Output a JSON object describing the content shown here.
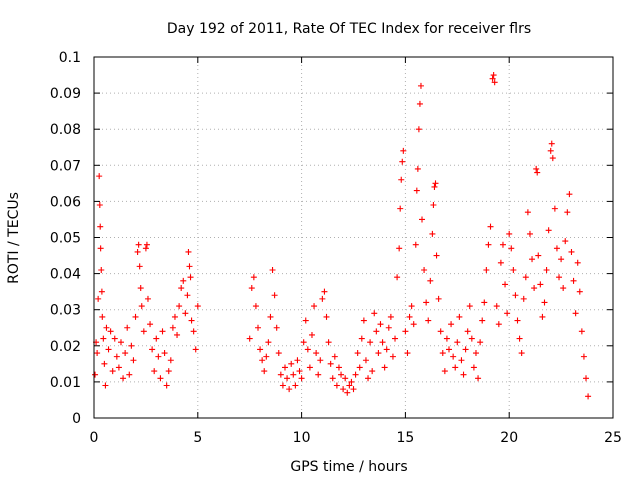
{
  "chart_data": {
    "type": "scatter",
    "title": "Day 192 of 2011, Rate Of TEC Index for receiver flrs",
    "xlabel": "GPS time / hours",
    "ylabel": "ROTI / TECUs",
    "xlim": [
      0,
      25
    ],
    "ylim": [
      0,
      0.1
    ],
    "xticks": [
      0,
      5,
      10,
      15,
      20,
      25
    ],
    "xtick_labels": [
      "0",
      "5",
      "10",
      "15",
      "20",
      "25"
    ],
    "yticks": [
      0,
      0.01,
      0.02,
      0.03,
      0.04,
      0.05,
      0.06,
      0.07,
      0.08,
      0.09,
      0.1
    ],
    "ytick_labels": [
      "0",
      "0.01",
      "0.02",
      "0.03",
      "0.04",
      "0.05",
      "0.06",
      "0.07",
      "0.08",
      "0.09",
      "0.1"
    ],
    "grid": true,
    "marker": "+",
    "color": "#ff0000",
    "series": [
      {
        "name": "ROTI",
        "points": [
          [
            0.05,
            0.012
          ],
          [
            0.1,
            0.021
          ],
          [
            0.15,
            0.018
          ],
          [
            0.2,
            0.033
          ],
          [
            0.25,
            0.067
          ],
          [
            0.28,
            0.059
          ],
          [
            0.3,
            0.053
          ],
          [
            0.32,
            0.047
          ],
          [
            0.35,
            0.041
          ],
          [
            0.38,
            0.035
          ],
          [
            0.4,
            0.028
          ],
          [
            0.45,
            0.022
          ],
          [
            0.5,
            0.015
          ],
          [
            0.55,
            0.009
          ],
          [
            0.6,
            0.025
          ],
          [
            0.7,
            0.019
          ],
          [
            0.8,
            0.024
          ],
          [
            0.9,
            0.013
          ],
          [
            1.0,
            0.022
          ],
          [
            1.1,
            0.017
          ],
          [
            1.2,
            0.014
          ],
          [
            1.3,
            0.021
          ],
          [
            1.4,
            0.011
          ],
          [
            1.5,
            0.018
          ],
          [
            1.6,
            0.025
          ],
          [
            1.7,
            0.012
          ],
          [
            1.8,
            0.02
          ],
          [
            1.9,
            0.016
          ],
          [
            2.0,
            0.028
          ],
          [
            2.1,
            0.046
          ],
          [
            2.15,
            0.048
          ],
          [
            2.2,
            0.042
          ],
          [
            2.25,
            0.036
          ],
          [
            2.3,
            0.031
          ],
          [
            2.4,
            0.024
          ],
          [
            2.5,
            0.047
          ],
          [
            2.55,
            0.048
          ],
          [
            2.6,
            0.033
          ],
          [
            2.7,
            0.026
          ],
          [
            2.8,
            0.019
          ],
          [
            2.9,
            0.013
          ],
          [
            3.0,
            0.022
          ],
          [
            3.1,
            0.017
          ],
          [
            3.2,
            0.011
          ],
          [
            3.3,
            0.024
          ],
          [
            3.4,
            0.018
          ],
          [
            3.5,
            0.009
          ],
          [
            3.6,
            0.013
          ],
          [
            3.7,
            0.016
          ],
          [
            3.8,
            0.025
          ],
          [
            3.9,
            0.028
          ],
          [
            4.0,
            0.023
          ],
          [
            4.1,
            0.031
          ],
          [
            4.2,
            0.036
          ],
          [
            4.3,
            0.038
          ],
          [
            4.4,
            0.029
          ],
          [
            4.5,
            0.034
          ],
          [
            4.55,
            0.046
          ],
          [
            4.6,
            0.042
          ],
          [
            4.65,
            0.039
          ],
          [
            4.7,
            0.027
          ],
          [
            4.8,
            0.024
          ],
          [
            4.9,
            0.019
          ],
          [
            5.0,
            0.031
          ],
          [
            7.5,
            0.022
          ],
          [
            7.6,
            0.036
          ],
          [
            7.7,
            0.039
          ],
          [
            7.8,
            0.031
          ],
          [
            7.9,
            0.025
          ],
          [
            8.0,
            0.019
          ],
          [
            8.1,
            0.016
          ],
          [
            8.2,
            0.013
          ],
          [
            8.3,
            0.017
          ],
          [
            8.4,
            0.021
          ],
          [
            8.5,
            0.028
          ],
          [
            8.6,
            0.041
          ],
          [
            8.7,
            0.034
          ],
          [
            8.8,
            0.025
          ],
          [
            8.9,
            0.018
          ],
          [
            9.0,
            0.012
          ],
          [
            9.1,
            0.009
          ],
          [
            9.2,
            0.014
          ],
          [
            9.3,
            0.011
          ],
          [
            9.4,
            0.008
          ],
          [
            9.5,
            0.015
          ],
          [
            9.6,
            0.012
          ],
          [
            9.7,
            0.009
          ],
          [
            9.8,
            0.016
          ],
          [
            9.9,
            0.013
          ],
          [
            10.0,
            0.011
          ],
          [
            10.1,
            0.021
          ],
          [
            10.2,
            0.027
          ],
          [
            10.3,
            0.019
          ],
          [
            10.4,
            0.014
          ],
          [
            10.5,
            0.023
          ],
          [
            10.6,
            0.031
          ],
          [
            10.7,
            0.018
          ],
          [
            10.8,
            0.012
          ],
          [
            10.9,
            0.016
          ],
          [
            11.0,
            0.033
          ],
          [
            11.1,
            0.035
          ],
          [
            11.2,
            0.028
          ],
          [
            11.3,
            0.021
          ],
          [
            11.4,
            0.015
          ],
          [
            11.5,
            0.011
          ],
          [
            11.6,
            0.017
          ],
          [
            11.7,
            0.009
          ],
          [
            11.8,
            0.014
          ],
          [
            11.9,
            0.012
          ],
          [
            12.0,
            0.008
          ],
          [
            12.1,
            0.011
          ],
          [
            12.2,
            0.007
          ],
          [
            12.3,
            0.009
          ],
          [
            12.4,
            0.01
          ],
          [
            12.5,
            0.008
          ],
          [
            12.6,
            0.012
          ],
          [
            12.7,
            0.018
          ],
          [
            12.8,
            0.014
          ],
          [
            12.9,
            0.022
          ],
          [
            13.0,
            0.027
          ],
          [
            13.1,
            0.016
          ],
          [
            13.2,
            0.011
          ],
          [
            13.3,
            0.021
          ],
          [
            13.4,
            0.013
          ],
          [
            13.5,
            0.029
          ],
          [
            13.6,
            0.024
          ],
          [
            13.7,
            0.018
          ],
          [
            13.8,
            0.026
          ],
          [
            13.9,
            0.021
          ],
          [
            14.0,
            0.014
          ],
          [
            14.1,
            0.019
          ],
          [
            14.2,
            0.025
          ],
          [
            14.3,
            0.028
          ],
          [
            14.4,
            0.017
          ],
          [
            14.5,
            0.022
          ],
          [
            14.6,
            0.039
          ],
          [
            14.7,
            0.047
          ],
          [
            14.75,
            0.058
          ],
          [
            14.8,
            0.066
          ],
          [
            14.85,
            0.071
          ],
          [
            14.9,
            0.074
          ],
          [
            15.0,
            0.024
          ],
          [
            15.1,
            0.018
          ],
          [
            15.2,
            0.028
          ],
          [
            15.3,
            0.031
          ],
          [
            15.4,
            0.026
          ],
          [
            15.5,
            0.048
          ],
          [
            15.55,
            0.063
          ],
          [
            15.6,
            0.069
          ],
          [
            15.65,
            0.08
          ],
          [
            15.7,
            0.087
          ],
          [
            15.75,
            0.092
          ],
          [
            15.8,
            0.055
          ],
          [
            15.9,
            0.041
          ],
          [
            16.0,
            0.032
          ],
          [
            16.1,
            0.027
          ],
          [
            16.2,
            0.038
          ],
          [
            16.3,
            0.051
          ],
          [
            16.35,
            0.059
          ],
          [
            16.4,
            0.064
          ],
          [
            16.45,
            0.065
          ],
          [
            16.5,
            0.045
          ],
          [
            16.6,
            0.033
          ],
          [
            16.7,
            0.024
          ],
          [
            16.8,
            0.018
          ],
          [
            16.9,
            0.013
          ],
          [
            17.0,
            0.022
          ],
          [
            17.1,
            0.019
          ],
          [
            17.2,
            0.026
          ],
          [
            17.3,
            0.017
          ],
          [
            17.4,
            0.014
          ],
          [
            17.5,
            0.021
          ],
          [
            17.6,
            0.028
          ],
          [
            17.7,
            0.016
          ],
          [
            17.8,
            0.012
          ],
          [
            17.9,
            0.019
          ],
          [
            18.0,
            0.024
          ],
          [
            18.1,
            0.031
          ],
          [
            18.2,
            0.022
          ],
          [
            18.3,
            0.014
          ],
          [
            18.4,
            0.018
          ],
          [
            18.5,
            0.011
          ],
          [
            18.6,
            0.021
          ],
          [
            18.7,
            0.027
          ],
          [
            18.8,
            0.032
          ],
          [
            18.9,
            0.041
          ],
          [
            19.0,
            0.048
          ],
          [
            19.1,
            0.053
          ],
          [
            19.2,
            0.094
          ],
          [
            19.25,
            0.095
          ],
          [
            19.3,
            0.093
          ],
          [
            19.4,
            0.031
          ],
          [
            19.5,
            0.026
          ],
          [
            19.6,
            0.043
          ],
          [
            19.7,
            0.048
          ],
          [
            19.8,
            0.037
          ],
          [
            19.9,
            0.029
          ],
          [
            20.0,
            0.051
          ],
          [
            20.1,
            0.047
          ],
          [
            20.2,
            0.041
          ],
          [
            20.3,
            0.034
          ],
          [
            20.4,
            0.027
          ],
          [
            20.5,
            0.022
          ],
          [
            20.6,
            0.018
          ],
          [
            20.7,
            0.033
          ],
          [
            20.8,
            0.039
          ],
          [
            20.9,
            0.057
          ],
          [
            21.0,
            0.051
          ],
          [
            21.1,
            0.044
          ],
          [
            21.2,
            0.036
          ],
          [
            21.3,
            0.069
          ],
          [
            21.35,
            0.068
          ],
          [
            21.4,
            0.045
          ],
          [
            21.5,
            0.037
          ],
          [
            21.6,
            0.028
          ],
          [
            21.7,
            0.032
          ],
          [
            21.8,
            0.041
          ],
          [
            21.9,
            0.052
          ],
          [
            22.0,
            0.074
          ],
          [
            22.05,
            0.076
          ],
          [
            22.1,
            0.072
          ],
          [
            22.2,
            0.058
          ],
          [
            22.3,
            0.047
          ],
          [
            22.4,
            0.039
          ],
          [
            22.5,
            0.044
          ],
          [
            22.6,
            0.036
          ],
          [
            22.7,
            0.049
          ],
          [
            22.8,
            0.057
          ],
          [
            22.9,
            0.062
          ],
          [
            23.0,
            0.046
          ],
          [
            23.1,
            0.038
          ],
          [
            23.2,
            0.029
          ],
          [
            23.3,
            0.043
          ],
          [
            23.4,
            0.035
          ],
          [
            23.5,
            0.024
          ],
          [
            23.6,
            0.017
          ],
          [
            23.7,
            0.011
          ],
          [
            23.8,
            0.006
          ]
        ]
      }
    ]
  }
}
